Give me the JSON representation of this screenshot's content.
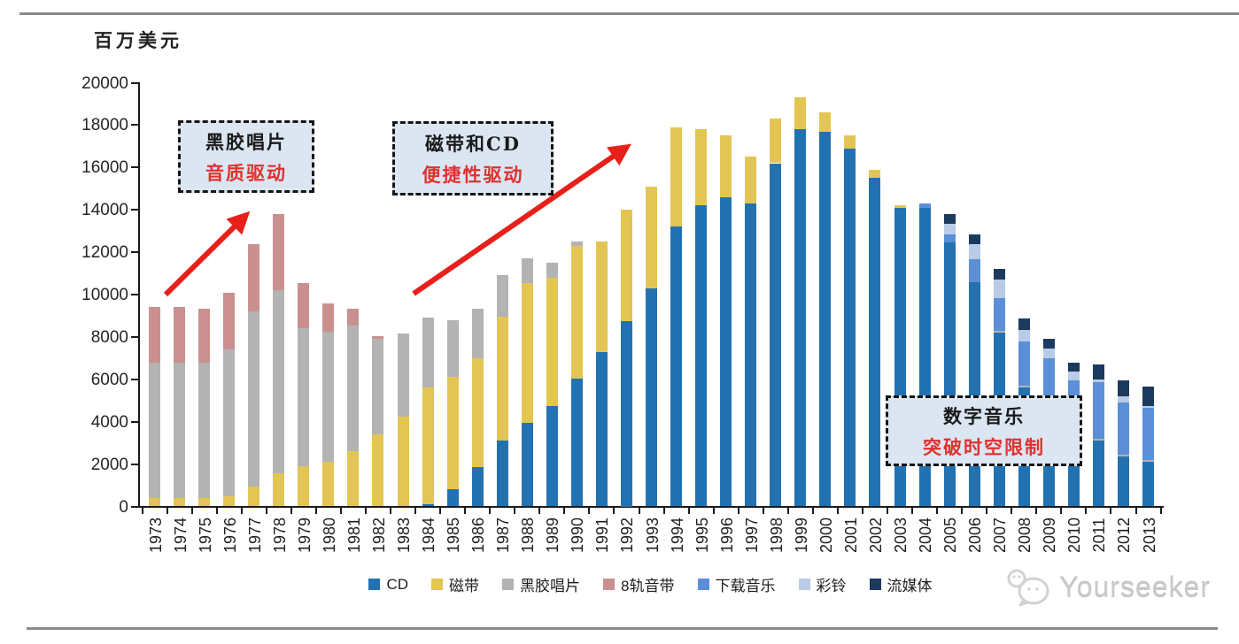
{
  "chart": {
    "unit_label": "百万美元"
  },
  "chart_data": {
    "type": "bar",
    "stacked": true,
    "title": "百万美元",
    "ylabel": "百万美元",
    "xlabel": "",
    "ylim": [
      0,
      20000
    ],
    "ytick_step": 2000,
    "grid": false,
    "legend_position": "bottom",
    "categories": [
      "1973",
      "1974",
      "1975",
      "1976",
      "1977",
      "1978",
      "1979",
      "1980",
      "1981",
      "1982",
      "1983",
      "1984",
      "1985",
      "1986",
      "1987",
      "1988",
      "1989",
      "1990",
      "1991",
      "1992",
      "1993",
      "1994",
      "1995",
      "1996",
      "1997",
      "1998",
      "1999",
      "2000",
      "2001",
      "2002",
      "2003",
      "2004",
      "2005",
      "2006",
      "2007",
      "2008",
      "2009",
      "2010",
      "2011",
      "2012",
      "2013"
    ],
    "series": [
      {
        "name": "CD",
        "color": "#2272b2",
        "values": [
          0,
          0,
          0,
          0,
          0,
          0,
          0,
          0,
          0,
          0,
          0,
          100,
          800,
          1850,
          3100,
          3950,
          4750,
          6050,
          7300,
          8750,
          10300,
          13200,
          14200,
          14600,
          14300,
          16200,
          17800,
          17700,
          16900,
          15500,
          14100,
          14100,
          12450,
          10600,
          8200,
          5600,
          4400,
          3400,
          3100,
          2350,
          2100
        ]
      },
      {
        "name": "磁带",
        "color": "#e3c553",
        "values": [
          400,
          400,
          400,
          500,
          950,
          1550,
          1900,
          2100,
          2600,
          3400,
          4250,
          5500,
          5300,
          5150,
          5850,
          6600,
          6050,
          6250,
          5200,
          5250,
          4800,
          4700,
          3600,
          2900,
          2200,
          2100,
          1500,
          900,
          600,
          400,
          100,
          0,
          0,
          0,
          0,
          0,
          0,
          0,
          0,
          0,
          0
        ]
      },
      {
        "name": "黑胶唱片",
        "color": "#b3b3b3",
        "values": [
          6400,
          6400,
          6400,
          6900,
          8250,
          8650,
          6500,
          6150,
          5950,
          4500,
          3900,
          3300,
          2700,
          2350,
          1950,
          1150,
          700,
          200,
          0,
          0,
          0,
          0,
          0,
          0,
          0,
          0,
          0,
          0,
          0,
          0,
          0,
          0,
          0,
          0,
          100,
          100,
          100,
          100,
          100,
          100,
          100
        ]
      },
      {
        "name": "8轨音带",
        "color": "#ca9090",
        "values": [
          2600,
          2600,
          2550,
          2700,
          3200,
          3600,
          2150,
          1350,
          800,
          150,
          0,
          0,
          0,
          0,
          0,
          0,
          0,
          0,
          0,
          0,
          0,
          0,
          0,
          0,
          0,
          0,
          0,
          0,
          0,
          0,
          0,
          0,
          0,
          0,
          0,
          0,
          0,
          0,
          0,
          0,
          0
        ]
      },
      {
        "name": "下载音乐",
        "color": "#5b8fd8",
        "values": [
          0,
          0,
          0,
          0,
          0,
          0,
          0,
          0,
          0,
          0,
          0,
          0,
          0,
          0,
          0,
          0,
          0,
          0,
          0,
          0,
          0,
          0,
          0,
          0,
          0,
          0,
          0,
          0,
          0,
          0,
          0,
          200,
          400,
          1050,
          1550,
          2100,
          2500,
          2450,
          2650,
          2450,
          2450
        ]
      },
      {
        "name": "彩铃",
        "color": "#b9cbe6",
        "values": [
          0,
          0,
          0,
          0,
          0,
          0,
          0,
          0,
          0,
          0,
          0,
          0,
          0,
          0,
          0,
          0,
          0,
          0,
          0,
          0,
          0,
          0,
          0,
          0,
          0,
          0,
          0,
          0,
          0,
          0,
          0,
          0,
          500,
          750,
          850,
          550,
          450,
          400,
          150,
          300,
          100
        ]
      },
      {
        "name": "流媒体",
        "color": "#1b3a5e",
        "values": [
          0,
          0,
          0,
          0,
          0,
          0,
          0,
          0,
          0,
          0,
          0,
          0,
          0,
          0,
          0,
          0,
          0,
          0,
          0,
          0,
          0,
          0,
          0,
          0,
          0,
          0,
          0,
          0,
          0,
          0,
          0,
          0,
          450,
          450,
          500,
          520,
          450,
          450,
          700,
          750,
          900
        ]
      }
    ]
  },
  "annotations": [
    {
      "line1": "黑胶唱片",
      "line2": "音质驱动"
    },
    {
      "line1": "磁带和CD",
      "line2": "便捷性驱动"
    },
    {
      "line1": "数字音乐",
      "line2": "突破时空限制"
    }
  ],
  "colors": {
    "arrow_red": "#e8201a",
    "annotation_fill": "#dbe6f2",
    "axis": "#1a1a1a"
  },
  "watermark": {
    "text": "Yourseeker"
  }
}
